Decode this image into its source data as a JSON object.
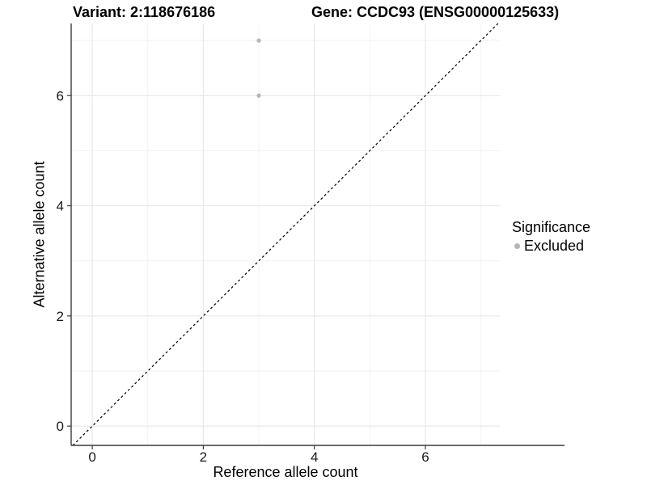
{
  "chart_data": {
    "type": "scatter",
    "title_left": "Variant: 2:118676186",
    "title_right": "Gene: CCDC93 (ENSG00000125633)",
    "xlabel": "Reference allele count",
    "ylabel": "Alternative allele count",
    "xlim": [
      -0.38,
      7.34
    ],
    "ylim": [
      -0.35,
      7.31
    ],
    "xticks": [
      0,
      2,
      4,
      6
    ],
    "yticks": [
      0,
      2,
      4,
      6
    ],
    "xminor": [
      1,
      3,
      5,
      7
    ],
    "yminor": [
      1,
      3,
      5,
      7
    ],
    "grid": true,
    "series": [
      {
        "name": "Excluded",
        "color": "#b5b5b5",
        "points": [
          [
            3,
            6
          ],
          [
            3,
            7
          ]
        ]
      }
    ],
    "identity_line": {
      "type": "y=x",
      "style": "dashed",
      "color": "#000000"
    },
    "legend": {
      "position": "right",
      "title": "Significance",
      "items": [
        {
          "label": "Excluded",
          "color": "#b5b5b5"
        }
      ]
    },
    "colors": {
      "grid_major": "#e4e4e4",
      "grid_minor": "#f2f2f2",
      "axis_line": "#3c3c3c",
      "tick_text": "#1a1a1a",
      "point": "#b5b5b5"
    }
  }
}
